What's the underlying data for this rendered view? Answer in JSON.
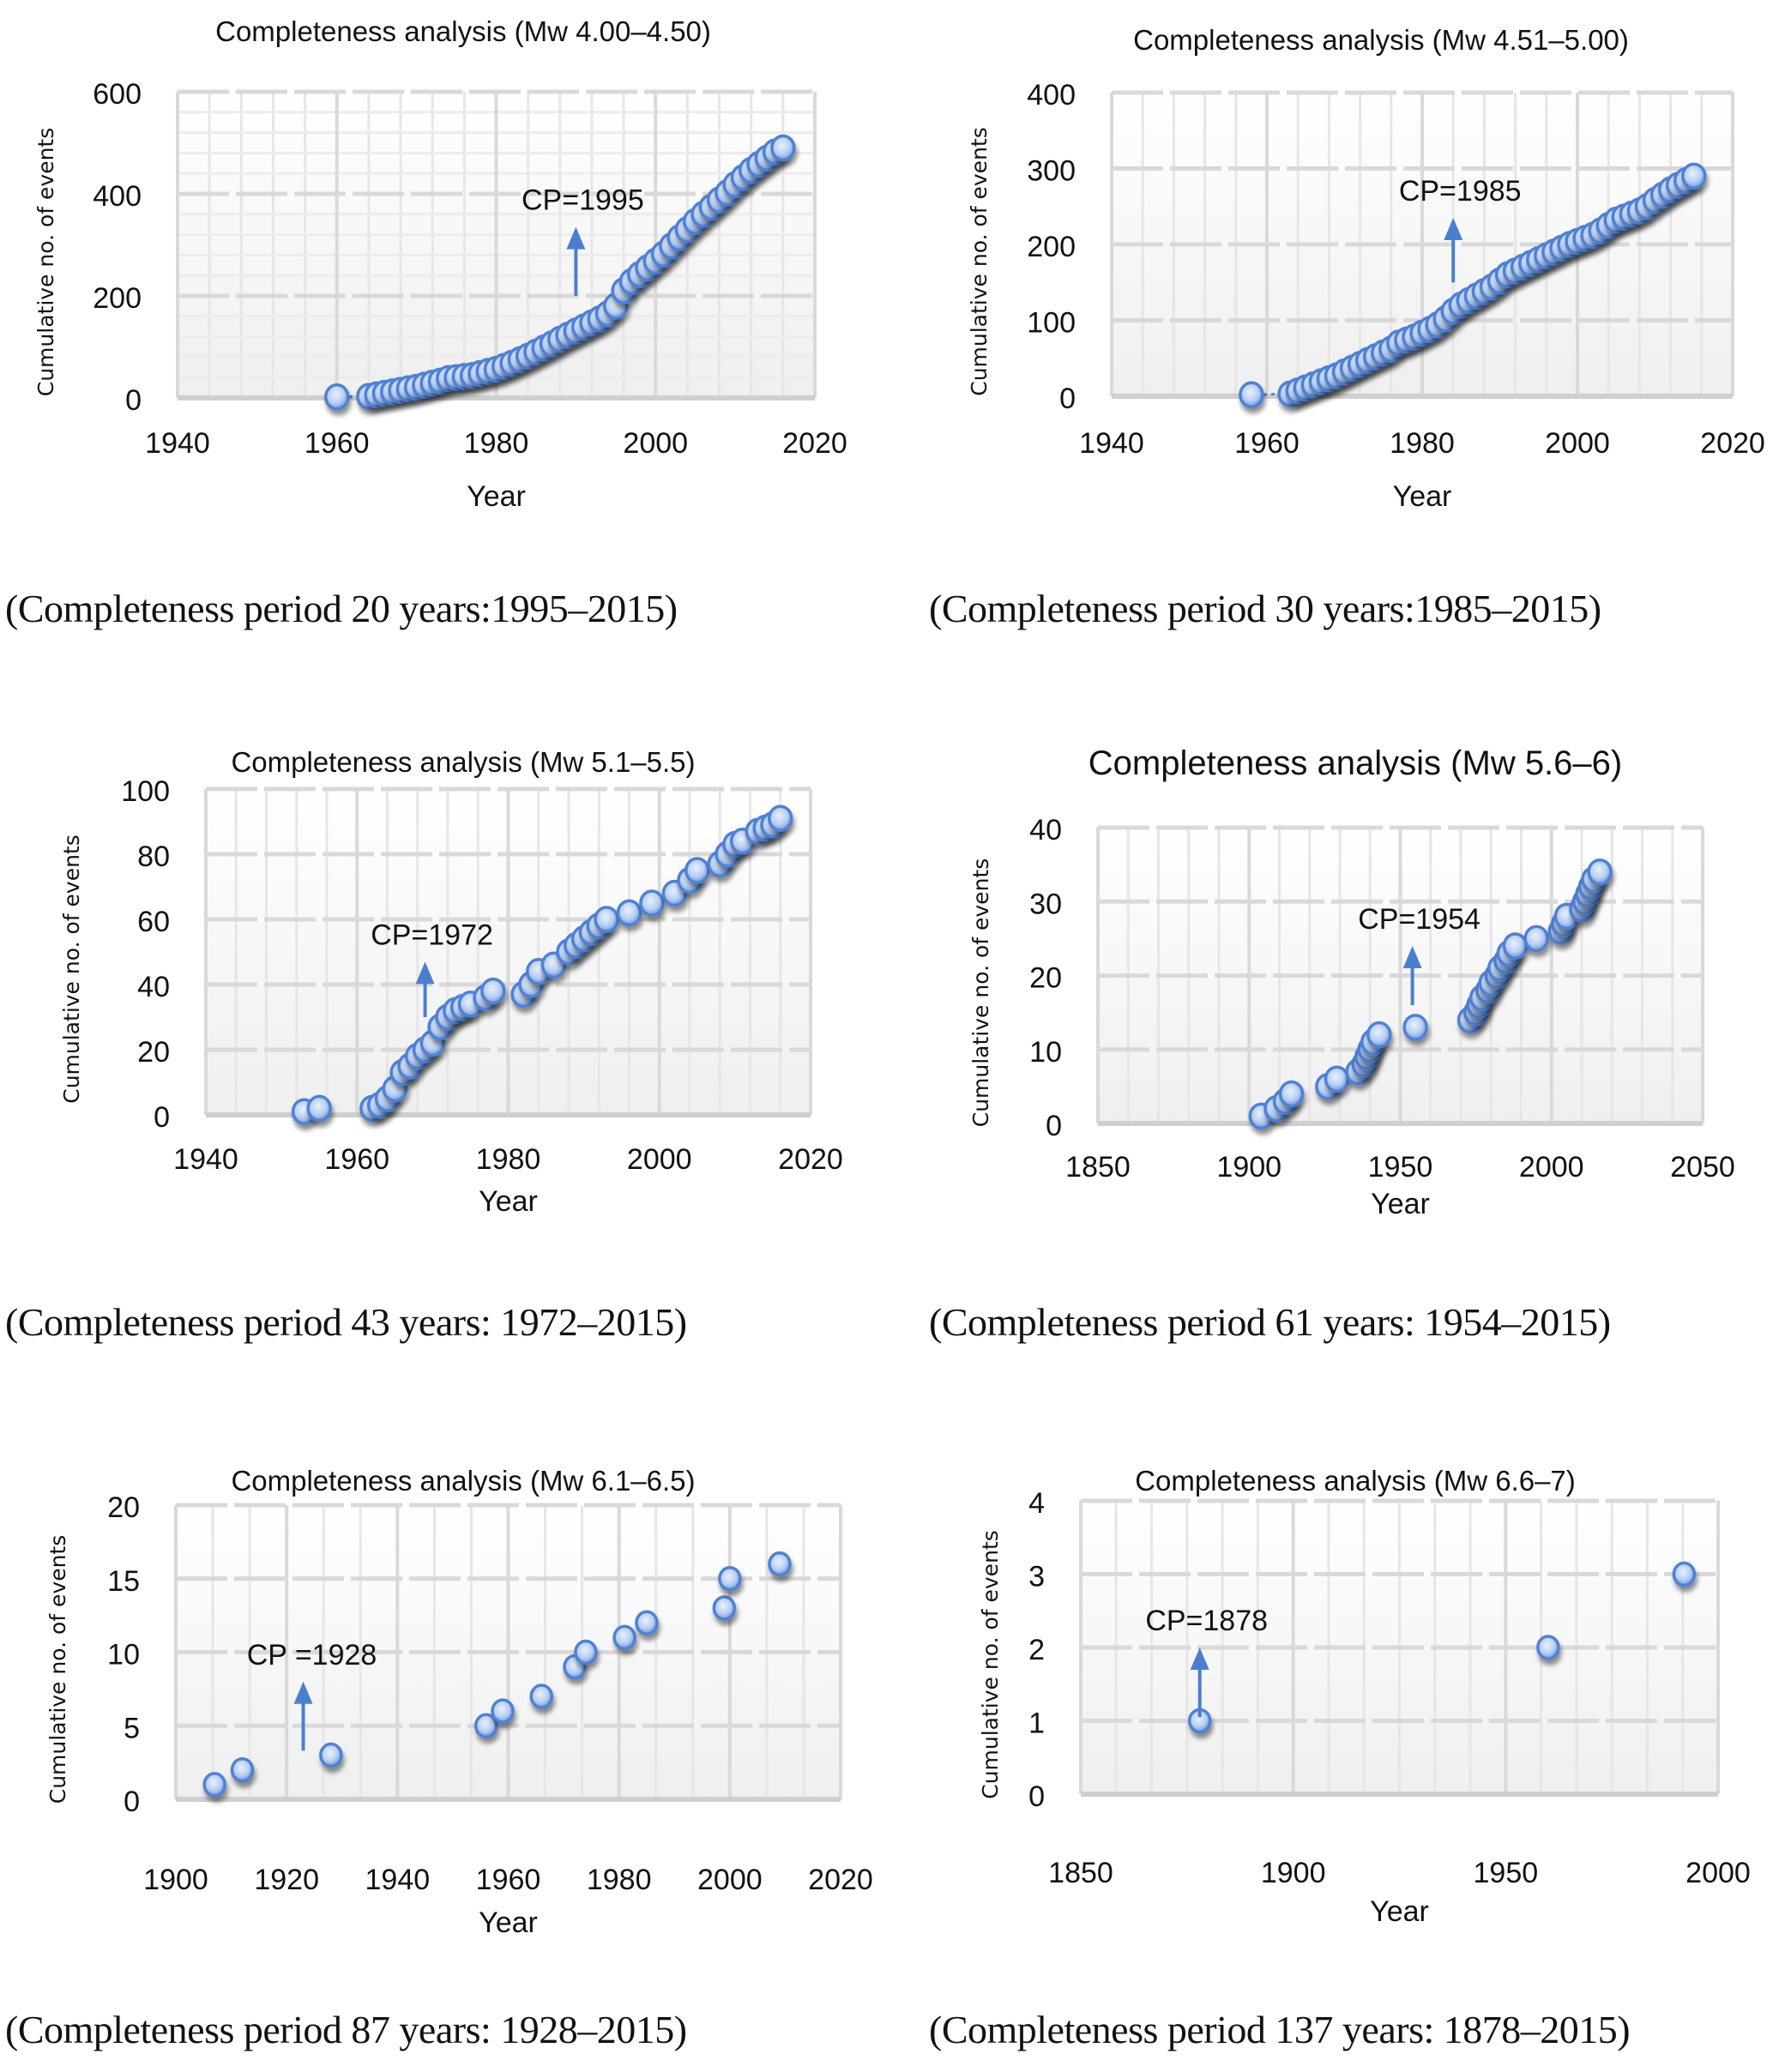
{
  "figure": {
    "captions": [
      "(Completeness period 20 years:1995–2015)",
      "(Completeness period 30 years:1985–2015)",
      "(Completeness period 43 years: 1972–2015)",
      "(Completeness period 61 years: 1954–2015)",
      "(Completeness period 87 years: 1928–2015)",
      "(Completeness period 137 years: 1878–2015)"
    ],
    "marker_color": "#4f81d4",
    "marker_fill": "#c5d9f7",
    "arrow_color": "#4a7fcf"
  },
  "chart_data": [
    {
      "type": "scatter",
      "title": "Completeness analysis (Mw 4.00–4.50)",
      "xlabel": "Year",
      "ylabel": "Cumulative no. of events",
      "xlim": [
        1940,
        2020
      ],
      "ylim": [
        0,
        600
      ],
      "xticks": [
        1940,
        1960,
        1980,
        2000,
        2020
      ],
      "yticks": [
        0,
        200,
        400,
        600
      ],
      "grid": true,
      "annotation": {
        "text": "CP=1995",
        "x": 1990,
        "y_from": 200,
        "y_to": 335
      },
      "points": [
        [
          1960,
          2
        ],
        [
          1964,
          3
        ],
        [
          1965,
          6
        ],
        [
          1966,
          9
        ],
        [
          1967,
          12
        ],
        [
          1968,
          15
        ],
        [
          1969,
          18
        ],
        [
          1970,
          21
        ],
        [
          1971,
          25
        ],
        [
          1972,
          29
        ],
        [
          1973,
          33
        ],
        [
          1974,
          38
        ],
        [
          1975,
          40
        ],
        [
          1976,
          42
        ],
        [
          1977,
          44
        ],
        [
          1978,
          48
        ],
        [
          1979,
          52
        ],
        [
          1980,
          56
        ],
        [
          1981,
          62
        ],
        [
          1982,
          68
        ],
        [
          1983,
          75
        ],
        [
          1984,
          82
        ],
        [
          1985,
          90
        ],
        [
          1986,
          98
        ],
        [
          1987,
          106
        ],
        [
          1988,
          115
        ],
        [
          1989,
          123
        ],
        [
          1990,
          131
        ],
        [
          1991,
          139
        ],
        [
          1992,
          147
        ],
        [
          1993,
          155
        ],
        [
          1994,
          165
        ],
        [
          1995,
          180
        ],
        [
          1996,
          210
        ],
        [
          1997,
          228
        ],
        [
          1998,
          242
        ],
        [
          1999,
          255
        ],
        [
          2000,
          268
        ],
        [
          2001,
          282
        ],
        [
          2002,
          298
        ],
        [
          2003,
          314
        ],
        [
          2004,
          330
        ],
        [
          2005,
          346
        ],
        [
          2006,
          360
        ],
        [
          2007,
          374
        ],
        [
          2008,
          388
        ],
        [
          2009,
          402
        ],
        [
          2010,
          418
        ],
        [
          2011,
          432
        ],
        [
          2012,
          446
        ],
        [
          2013,
          458
        ],
        [
          2014,
          470
        ],
        [
          2015,
          482
        ],
        [
          2016,
          490
        ]
      ]
    },
    {
      "type": "scatter",
      "title": "Completeness analysis (Mw 4.51–5.00)",
      "xlabel": "Year",
      "ylabel": "Cumulative no. of events",
      "xlim": [
        1940,
        2020
      ],
      "ylim": [
        0,
        400
      ],
      "xticks": [
        1940,
        1960,
        1980,
        2000,
        2020
      ],
      "yticks": [
        0,
        100,
        200,
        300,
        400
      ],
      "grid": true,
      "annotation": {
        "text": "CP=1985",
        "x": 1984,
        "y_from": 150,
        "y_to": 235
      },
      "points": [
        [
          1958,
          2
        ],
        [
          1963,
          3
        ],
        [
          1964,
          7
        ],
        [
          1965,
          11
        ],
        [
          1966,
          15
        ],
        [
          1967,
          19
        ],
        [
          1968,
          23
        ],
        [
          1969,
          27
        ],
        [
          1970,
          32
        ],
        [
          1971,
          37
        ],
        [
          1972,
          42
        ],
        [
          1973,
          47
        ],
        [
          1974,
          52
        ],
        [
          1975,
          57
        ],
        [
          1976,
          62
        ],
        [
          1977,
          70
        ],
        [
          1978,
          74
        ],
        [
          1979,
          78
        ],
        [
          1980,
          83
        ],
        [
          1981,
          88
        ],
        [
          1982,
          94
        ],
        [
          1983,
          102
        ],
        [
          1984,
          112
        ],
        [
          1985,
          120
        ],
        [
          1986,
          126
        ],
        [
          1987,
          132
        ],
        [
          1988,
          138
        ],
        [
          1989,
          144
        ],
        [
          1990,
          152
        ],
        [
          1991,
          160
        ],
        [
          1992,
          165
        ],
        [
          1993,
          170
        ],
        [
          1994,
          175
        ],
        [
          1995,
          180
        ],
        [
          1996,
          185
        ],
        [
          1997,
          190
        ],
        [
          1998,
          195
        ],
        [
          1999,
          200
        ],
        [
          2000,
          204
        ],
        [
          2001,
          208
        ],
        [
          2002,
          212
        ],
        [
          2003,
          218
        ],
        [
          2004,
          225
        ],
        [
          2005,
          232
        ],
        [
          2006,
          236
        ],
        [
          2007,
          240
        ],
        [
          2008,
          244
        ],
        [
          2009,
          250
        ],
        [
          2010,
          258
        ],
        [
          2011,
          265
        ],
        [
          2012,
          272
        ],
        [
          2013,
          278
        ],
        [
          2014,
          284
        ],
        [
          2015,
          290
        ]
      ]
    },
    {
      "type": "scatter",
      "title": "Completeness analysis (Mw 5.1–5.5)",
      "xlabel": "Year",
      "ylabel": "Cumulative no. of events",
      "xlim": [
        1940,
        2020
      ],
      "ylim": [
        0,
        100
      ],
      "xticks": [
        1940,
        1960,
        1980,
        2000,
        2020
      ],
      "yticks": [
        0,
        20,
        40,
        60,
        80,
        100
      ],
      "grid": true,
      "annotation": {
        "text": "CP=1972",
        "x": 1969,
        "y_from": 30,
        "y_to": 47
      },
      "points": [
        [
          1953,
          1
        ],
        [
          1955,
          2
        ],
        [
          1962,
          2
        ],
        [
          1963,
          3
        ],
        [
          1964,
          5
        ],
        [
          1965,
          8
        ],
        [
          1966,
          13
        ],
        [
          1967,
          15
        ],
        [
          1968,
          18
        ],
        [
          1969,
          20
        ],
        [
          1970,
          22
        ],
        [
          1971,
          27
        ],
        [
          1972,
          30
        ],
        [
          1973,
          32
        ],
        [
          1974,
          33
        ],
        [
          1975,
          34
        ],
        [
          1977,
          36
        ],
        [
          1978,
          38
        ],
        [
          1982,
          37
        ],
        [
          1983,
          40
        ],
        [
          1984,
          44
        ],
        [
          1986,
          46
        ],
        [
          1988,
          50
        ],
        [
          1989,
          52
        ],
        [
          1990,
          54
        ],
        [
          1991,
          56
        ],
        [
          1992,
          58
        ],
        [
          1993,
          60
        ],
        [
          1996,
          62
        ],
        [
          1999,
          65
        ],
        [
          2002,
          68
        ],
        [
          2004,
          72
        ],
        [
          2005,
          75
        ],
        [
          2008,
          77
        ],
        [
          2009,
          80
        ],
        [
          2010,
          83
        ],
        [
          2011,
          84
        ],
        [
          2013,
          87
        ],
        [
          2014,
          88
        ],
        [
          2015,
          89
        ],
        [
          2016,
          91
        ]
      ]
    },
    {
      "type": "scatter",
      "title": "Completeness analysis (Mw 5.6–6)",
      "xlabel": "Year",
      "ylabel": "Cumulative no. of events",
      "xlim": [
        1850,
        2050
      ],
      "ylim": [
        0,
        40
      ],
      "xticks": [
        1850,
        1900,
        1950,
        2000,
        2050
      ],
      "yticks": [
        0,
        10,
        20,
        30,
        40
      ],
      "grid": true,
      "annotation": {
        "text": "CP=1954",
        "x": 1954,
        "y_from": 16,
        "y_to": 24
      },
      "points": [
        [
          1904,
          1
        ],
        [
          1909,
          2
        ],
        [
          1912,
          3
        ],
        [
          1914,
          4
        ],
        [
          1926,
          5
        ],
        [
          1929,
          6
        ],
        [
          1936,
          7
        ],
        [
          1938,
          8
        ],
        [
          1939,
          9
        ],
        [
          1940,
          10
        ],
        [
          1941,
          11
        ],
        [
          1943,
          12
        ],
        [
          1955,
          13
        ],
        [
          1973,
          14
        ],
        [
          1975,
          15
        ],
        [
          1976,
          16
        ],
        [
          1977,
          17
        ],
        [
          1979,
          18
        ],
        [
          1980,
          19
        ],
        [
          1982,
          20
        ],
        [
          1983,
          21
        ],
        [
          1985,
          22
        ],
        [
          1986,
          23
        ],
        [
          1988,
          24
        ],
        [
          1995,
          25
        ],
        [
          2003,
          26
        ],
        [
          2004,
          27
        ],
        [
          2005,
          28
        ],
        [
          2010,
          29
        ],
        [
          2011,
          30
        ],
        [
          2012,
          31
        ],
        [
          2013,
          32
        ],
        [
          2014,
          33
        ],
        [
          2016,
          34
        ]
      ]
    },
    {
      "type": "scatter",
      "title": "Completeness analysis (Mw 6.1–6.5)",
      "xlabel": "Year",
      "ylabel": "Cumulative no. of events",
      "xlim": [
        1900,
        2020
      ],
      "ylim": [
        0,
        20
      ],
      "xticks": [
        1900,
        1920,
        1940,
        1960,
        1980,
        2000,
        2020
      ],
      "yticks": [
        0,
        5,
        10,
        15,
        20
      ],
      "grid": true,
      "annotation": {
        "text": "CP =1928",
        "x": 1923,
        "y_from": 3.3,
        "y_to": 8
      },
      "points": [
        [
          1907,
          1
        ],
        [
          1912,
          2
        ],
        [
          1928,
          3
        ],
        [
          1956,
          5
        ],
        [
          1959,
          6
        ],
        [
          1966,
          7
        ],
        [
          1972,
          9
        ],
        [
          1974,
          10
        ],
        [
          1981,
          11
        ],
        [
          1985,
          12
        ],
        [
          1999,
          13
        ],
        [
          2000,
          15
        ],
        [
          2009,
          16
        ]
      ]
    },
    {
      "type": "scatter",
      "title": "Completeness analysis (Mw 6.6–7)",
      "xlabel": "Year",
      "ylabel": "Cumulative no. of events",
      "xlim": [
        1850,
        2000
      ],
      "ylim": [
        0,
        4
      ],
      "xticks": [
        1850,
        1900,
        1950,
        2000
      ],
      "yticks": [
        0,
        1,
        2,
        3,
        4
      ],
      "grid": true,
      "annotation": {
        "text": "CP=1878",
        "x": 1878,
        "y_from": 1.05,
        "y_to": 2
      },
      "points": [
        [
          1878,
          1
        ],
        [
          1960,
          2
        ],
        [
          1992,
          3
        ]
      ]
    }
  ]
}
